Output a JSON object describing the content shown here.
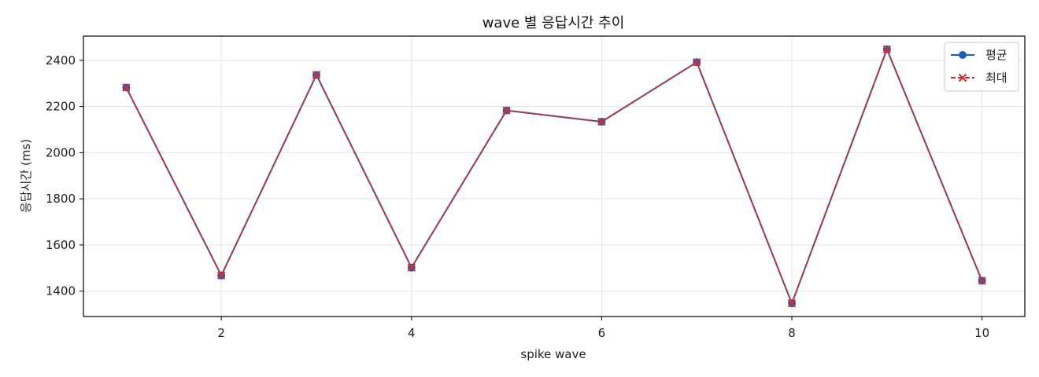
{
  "chart_data": {
    "type": "line",
    "title": "wave 별 응답시간 추이",
    "xlabel": "spike wave",
    "ylabel": "응답시간 (ms)",
    "x": [
      1,
      2,
      3,
      4,
      5,
      6,
      7,
      8,
      9,
      10
    ],
    "xlim": [
      0.55,
      10.45
    ],
    "ylim": [
      1290,
      2505
    ],
    "xticks": [
      2,
      4,
      6,
      8,
      10
    ],
    "yticks": [
      1400,
      1600,
      1800,
      2000,
      2200,
      2400
    ],
    "grid": true,
    "legend_position": "top-right",
    "series": [
      {
        "name": "평균",
        "values": [
          2282,
          1468,
          2337,
          1502,
          2183,
          2134,
          2392,
          1347,
          2448,
          1445
        ],
        "color": "#1f5fb5",
        "line_style": "solid",
        "marker": "circle"
      },
      {
        "name": "최대",
        "values": [
          2282,
          1468,
          2337,
          1502,
          2183,
          2134,
          2392,
          1347,
          2448,
          1445
        ],
        "color": "#d32f2f",
        "line_style": "dashed",
        "marker": "x"
      }
    ]
  }
}
